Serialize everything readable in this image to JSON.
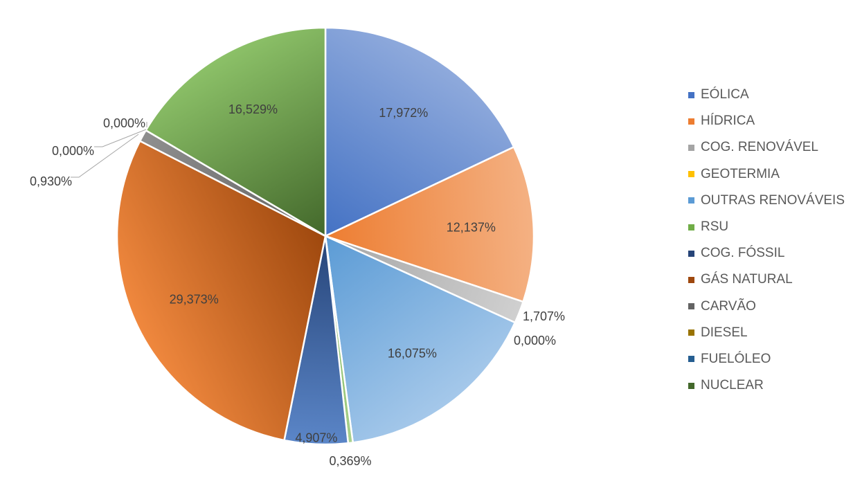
{
  "chart_data": {
    "type": "pie",
    "title": "",
    "legend_position": "right",
    "slices": [
      {
        "name": "EÓLICA",
        "value": 17.972,
        "label": "17,972%",
        "color": "#4472c4",
        "light": "#8faadc"
      },
      {
        "name": "HÍDRICA",
        "value": 12.137,
        "label": "12,137%",
        "color": "#ed7d31",
        "light": "#f4b183"
      },
      {
        "name": "COG. RENOVÁVEL",
        "value": 1.707,
        "label": "1,707%",
        "color": "#a5a5a5",
        "light": "#d0d0d0"
      },
      {
        "name": "GEOTERMIA",
        "value": 0.0,
        "label": "0,000%",
        "color": "#ffc000",
        "light": "#ffd966"
      },
      {
        "name": "OUTRAS RENOVÁVEIS",
        "value": 16.075,
        "label": "16,075%",
        "color": "#5b9bd5",
        "light": "#a5c8ea"
      },
      {
        "name": "RSU",
        "value": 0.369,
        "label": "0,369%",
        "color": "#70ad47",
        "light": "#a9d18e"
      },
      {
        "name": "COG. FÓSSIL",
        "value": 4.907,
        "label": "4,907%",
        "color": "#264478",
        "light": "#5b86c8"
      },
      {
        "name": "GÁS NATURAL",
        "value": 29.373,
        "label": "29,373%",
        "color": "#9e480e",
        "light": "#f0883e"
      },
      {
        "name": "CARVÃO",
        "value": 0.93,
        "label": "0,930%",
        "color": "#636363",
        "light": "#8f8f8f"
      },
      {
        "name": "DIESEL",
        "value": 0.0,
        "label": "0,000%",
        "color": "#997300",
        "light": "#ffc000"
      },
      {
        "name": "FUELÓLEO",
        "value": 0.0,
        "label": "0,000%",
        "color": "#255e91",
        "light": "#5b9bd5"
      },
      {
        "name": "NUCLEAR",
        "value": 16.529,
        "label": "16,529%",
        "color": "#43682b",
        "light": "#8cc168"
      }
    ]
  }
}
